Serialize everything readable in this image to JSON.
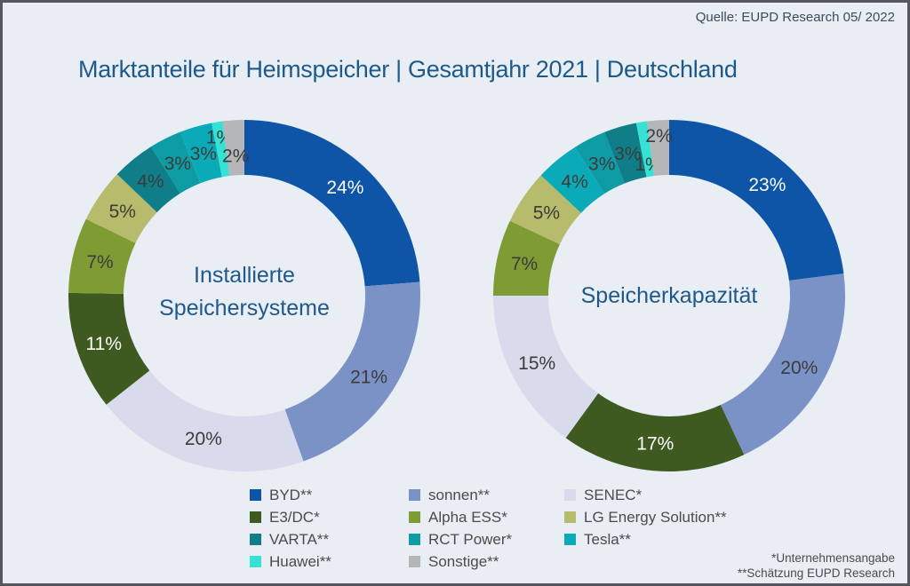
{
  "source": "Quelle: EUPD Research 05/ 2022",
  "title": "Marktanteile für Heimspeicher | Gesamtjahr 2021 | Deutschland",
  "colors": {
    "BYD": "#0e55a7",
    "sonnen": "#7b92c6",
    "SENEC": "#d7dbec",
    "E3/DC": "#3e5a20",
    "Alpha ESS": "#7f9c34",
    "LG Energy Solution": "#b6bc6b",
    "VARTA": "#0f7e88",
    "RCT Power": "#0d9ca3",
    "Tesla": "#0baab8",
    "Huawei": "#36e2d3",
    "Sonstige": "#b5b6b8"
  },
  "legend": {
    "items": [
      {
        "company": "BYD",
        "label": "BYD**"
      },
      {
        "company": "sonnen",
        "label": "sonnen**"
      },
      {
        "company": "SENEC",
        "label": "SENEC*"
      },
      {
        "company": "E3/DC",
        "label": "E3/DC*"
      },
      {
        "company": "Alpha ESS",
        "label": "Alpha ESS*"
      },
      {
        "company": "LG Energy Solution",
        "label": "LG Energy Solution**"
      },
      {
        "company": "VARTA",
        "label": "VARTA**"
      },
      {
        "company": "RCT Power",
        "label": "RCT Power*"
      },
      {
        "company": "Tesla",
        "label": "Tesla**"
      },
      {
        "company": "Huawei",
        "label": "Huawei**"
      },
      {
        "company": "Sonstige",
        "label": "Sonstige**"
      }
    ]
  },
  "chart_data": [
    {
      "type": "pie",
      "variant": "donut",
      "center_label_lines": [
        "Installierte",
        "Speichersysteme"
      ],
      "start_angle_deg": 0,
      "direction": "clockwise",
      "slices": [
        {
          "company": "BYD",
          "value": 24,
          "label": "24%",
          "white_label": true
        },
        {
          "company": "sonnen",
          "value": 21,
          "label": "21%",
          "white_label": false
        },
        {
          "company": "SENEC",
          "value": 20,
          "label": "20%",
          "white_label": false
        },
        {
          "company": "E3/DC",
          "value": 11,
          "label": "11%",
          "white_label": true
        },
        {
          "company": "Alpha ESS",
          "value": 7,
          "label": "7%",
          "white_label": false
        },
        {
          "company": "LG Energy Solution",
          "value": 5,
          "label": "5%",
          "white_label": false
        },
        {
          "company": "VARTA",
          "value": 4,
          "label": "4%",
          "white_label": false
        },
        {
          "company": "RCT Power",
          "value": 3,
          "label": "3%",
          "white_label": false
        },
        {
          "company": "Tesla",
          "value": 3,
          "label": "3%",
          "white_label": false
        },
        {
          "company": "Huawei",
          "value": 1,
          "label": "1%",
          "white_label": false,
          "label_r": 181
        },
        {
          "company": "Sonstige",
          "value": 2,
          "label": "2%",
          "white_label": false,
          "label_r": 158
        }
      ]
    },
    {
      "type": "pie",
      "variant": "donut",
      "center_label_lines": [
        "Speicherkapazität"
      ],
      "start_angle_deg": 0,
      "direction": "clockwise",
      "slices": [
        {
          "company": "BYD",
          "value": 23,
          "label": "23%",
          "white_label": true
        },
        {
          "company": "sonnen",
          "value": 20,
          "label": "20%",
          "white_label": false
        },
        {
          "company": "E3/DC",
          "value": 17,
          "label": "17%",
          "white_label": true
        },
        {
          "company": "SENEC",
          "value": 15,
          "label": "15%",
          "white_label": false
        },
        {
          "company": "Alpha ESS",
          "value": 7,
          "label": "7%",
          "white_label": false
        },
        {
          "company": "LG Energy Solution",
          "value": 5,
          "label": "5%",
          "white_label": false
        },
        {
          "company": "Tesla",
          "value": 4,
          "label": "4%",
          "white_label": false
        },
        {
          "company": "RCT Power",
          "value": 3,
          "label": "3%",
          "white_label": false
        },
        {
          "company": "VARTA",
          "value": 3,
          "label": "3%",
          "white_label": false
        },
        {
          "company": "Huawei",
          "value": 1,
          "label": "1%",
          "white_label": false,
          "label_r": 150
        },
        {
          "company": "Sonstige",
          "value": 2,
          "label": "2%",
          "white_label": false,
          "label_r": 181
        }
      ]
    }
  ],
  "footnotes": [
    "*Unternehmensangabe",
    "**Schätzung EUPD Research"
  ]
}
